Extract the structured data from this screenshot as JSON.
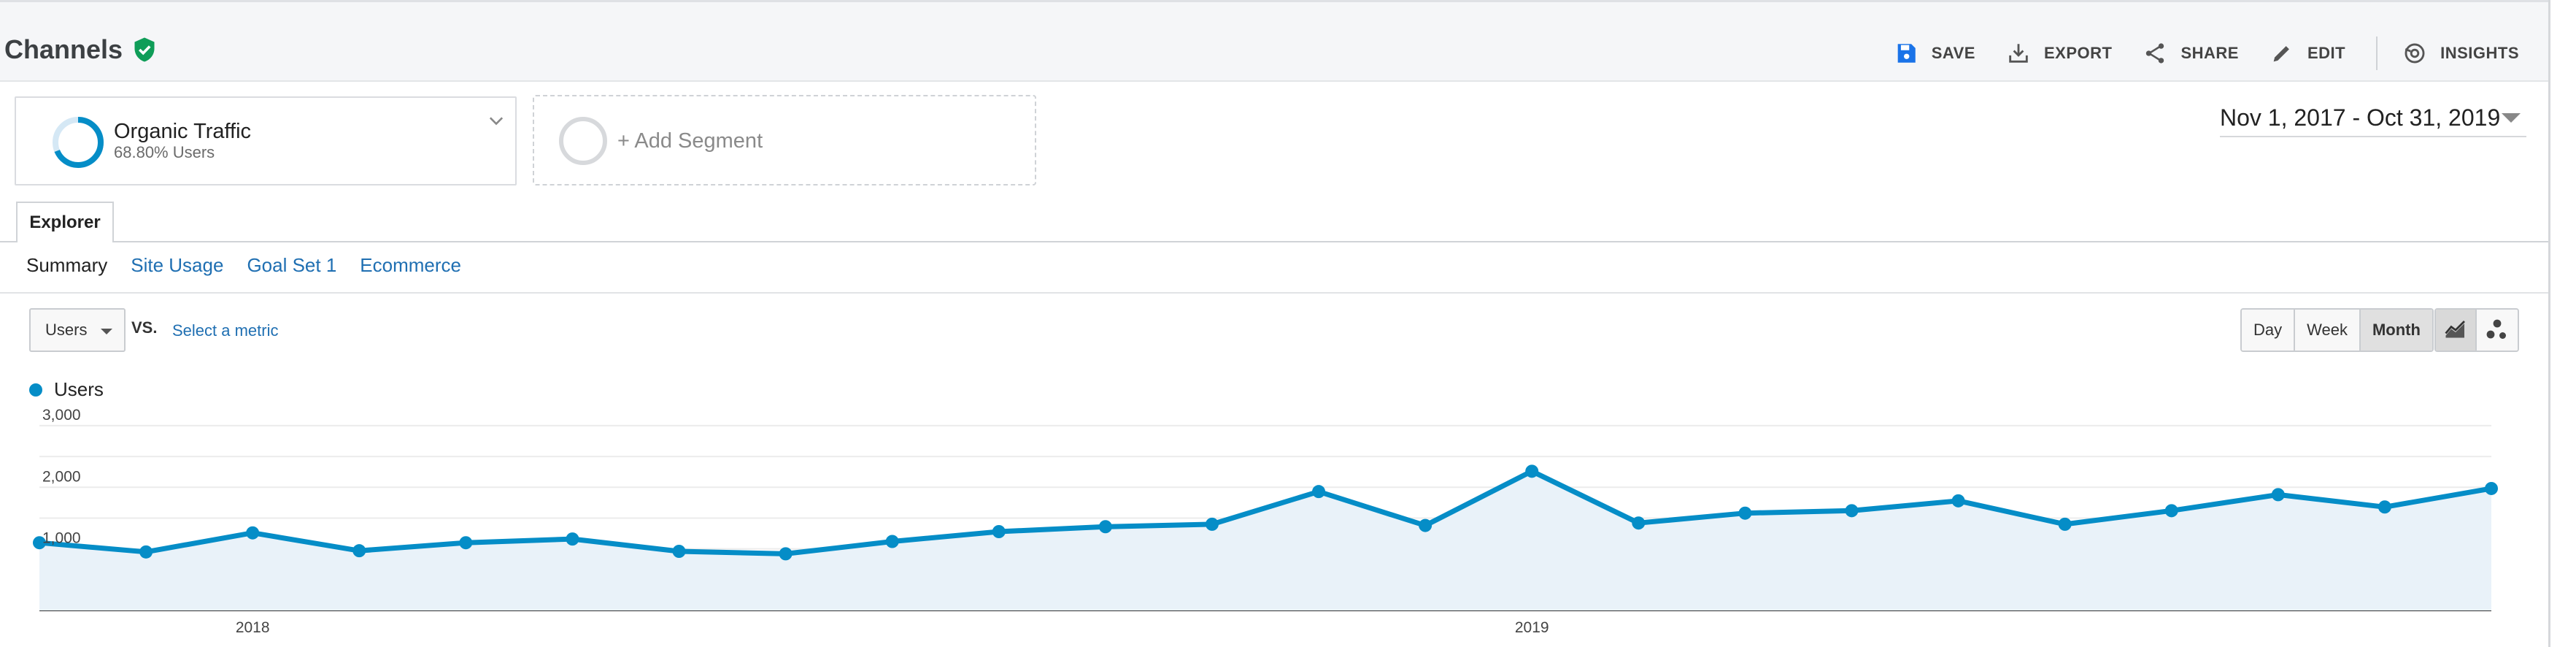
{
  "header": {
    "title": "Channels",
    "actions": [
      {
        "label": "SAVE",
        "icon": "save-icon"
      },
      {
        "label": "EXPORT",
        "icon": "export-icon"
      },
      {
        "label": "SHARE",
        "icon": "share-icon"
      },
      {
        "label": "EDIT",
        "icon": "edit-icon"
      },
      {
        "label": "INSIGHTS",
        "icon": "insights-icon"
      }
    ]
  },
  "segments": {
    "active": {
      "name": "Organic Traffic",
      "detail": "68.80% Users",
      "share": 0.688
    },
    "add_label": "+ Add Segment"
  },
  "date_range": "Nov 1, 2017 - Oct 31, 2019",
  "tabs": {
    "explorer": "Explorer",
    "subtabs": [
      "Summary",
      "Site Usage",
      "Goal Set 1",
      "Ecommerce"
    ]
  },
  "metric": {
    "selected": "Users",
    "vs": "VS.",
    "select_metric": "Select a metric"
  },
  "interval": {
    "options": [
      "Day",
      "Week",
      "Month"
    ],
    "selected": "Month"
  },
  "colors": {
    "series": "#058dc7",
    "fill": "#e9f2f9",
    "brand_green": "#0f9d58",
    "link": "#1f6fb2"
  },
  "chart_data": {
    "type": "area",
    "x": [
      "2017-11",
      "2017-12",
      "2018-01",
      "2018-02",
      "2018-03",
      "2018-04",
      "2018-05",
      "2018-06",
      "2018-07",
      "2018-08",
      "2018-09",
      "2018-10",
      "2018-11",
      "2018-12",
      "2019-01",
      "2019-02",
      "2019-03",
      "2019-04",
      "2019-05",
      "2019-06",
      "2019-07",
      "2019-08",
      "2019-09",
      "2019-10"
    ],
    "series": [
      {
        "name": "Users",
        "values": [
          1100,
          950,
          1260,
          970,
          1100,
          1160,
          960,
          920,
          1120,
          1280,
          1360,
          1400,
          1930,
          1380,
          2260,
          1420,
          1580,
          1620,
          1780,
          1400,
          1620,
          1880,
          1680,
          1980
        ]
      }
    ],
    "yticks": [
      1000,
      2000,
      3000
    ],
    "ylim": [
      0,
      3200
    ],
    "x_tick_labels": [
      {
        "label": "2018",
        "at": "2018-01"
      },
      {
        "label": "2019",
        "at": "2019-01"
      }
    ],
    "grid": true,
    "legend": "top-left"
  }
}
